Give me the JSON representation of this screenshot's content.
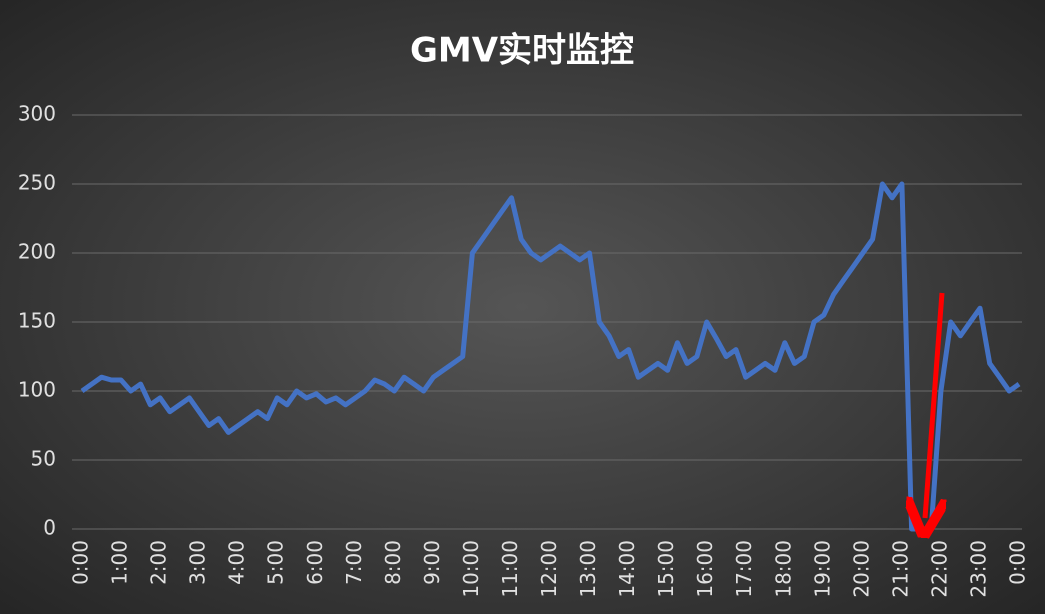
{
  "chart_data": {
    "type": "line",
    "title": "GMV实时监控",
    "categories": [
      "0:00",
      null,
      null,
      null,
      "1:00",
      null,
      null,
      null,
      "2:00",
      null,
      null,
      null,
      "3:00",
      null,
      null,
      null,
      "4:00",
      null,
      null,
      null,
      "5:00",
      null,
      null,
      null,
      "6:00",
      null,
      null,
      null,
      "7:00",
      null,
      null,
      null,
      "8:00",
      null,
      null,
      null,
      "9:00",
      null,
      null,
      null,
      "10:00",
      null,
      null,
      null,
      "11:00",
      null,
      null,
      null,
      "12:00",
      null,
      null,
      null,
      "13:00",
      null,
      null,
      null,
      "14:00",
      null,
      null,
      null,
      "15:00",
      null,
      null,
      null,
      "16:00",
      null,
      null,
      null,
      "17:00",
      null,
      null,
      null,
      "18:00",
      null,
      null,
      null,
      "19:00",
      null,
      null,
      null,
      "20:00",
      null,
      null,
      null,
      "21:00",
      null,
      null,
      null,
      "22:00",
      null,
      null,
      null,
      "23:00",
      null,
      null,
      null,
      "0:00"
    ],
    "values": [
      100,
      105,
      110,
      108,
      108,
      100,
      105,
      90,
      95,
      85,
      90,
      95,
      85,
      75,
      80,
      70,
      75,
      80,
      85,
      80,
      95,
      90,
      100,
      95,
      98,
      92,
      95,
      90,
      95,
      100,
      108,
      105,
      100,
      110,
      105,
      100,
      110,
      115,
      120,
      125,
      200,
      210,
      220,
      230,
      240,
      210,
      200,
      195,
      200,
      205,
      200,
      195,
      200,
      150,
      140,
      125,
      130,
      110,
      115,
      120,
      115,
      135,
      120,
      125,
      150,
      138,
      125,
      130,
      110,
      115,
      120,
      115,
      135,
      120,
      125,
      150,
      155,
      170,
      180,
      190,
      200,
      210,
      250,
      240,
      250,
      0,
      0,
      0,
      100,
      150,
      140,
      150,
      160,
      120,
      110,
      100,
      105
    ],
    "color": "#4472c4",
    "ylim": [
      0,
      300
    ],
    "yticks": [
      0,
      50,
      100,
      150,
      200,
      250,
      300
    ],
    "grid": true
  }
}
